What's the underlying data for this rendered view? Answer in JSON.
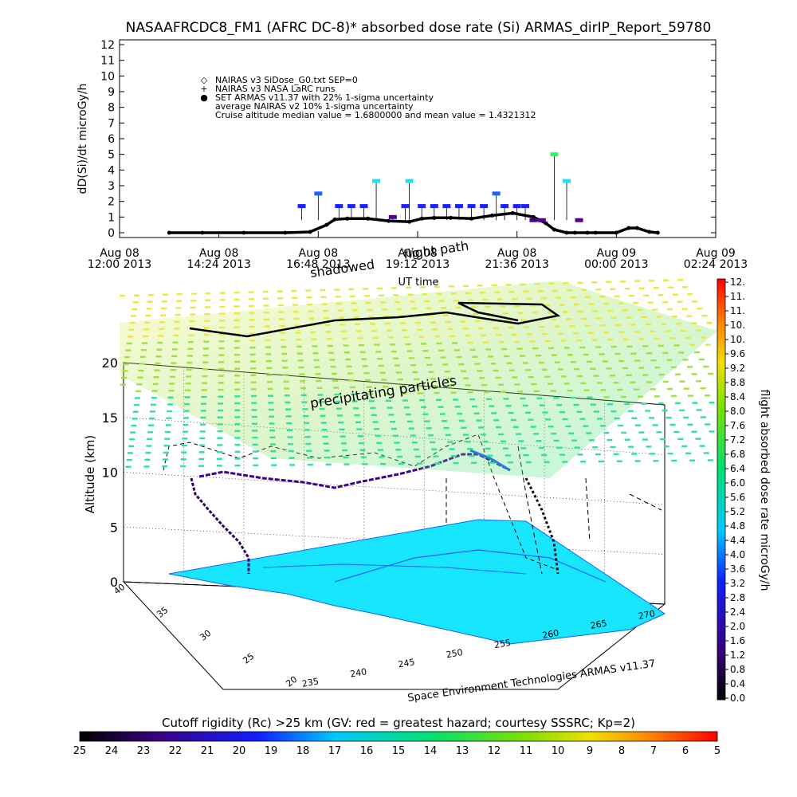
{
  "title": "NASAAFRCDC8_FM1 (AFRC DC-8)* absorbed dose rate (Si) ARMAS_dirIP_Report_59780",
  "chart_data": [
    {
      "type": "line",
      "ylabel": "dD(Si)/dt microGy/h",
      "xlabel": "UT time",
      "ylim": [
        0,
        12
      ],
      "yticks": [
        "0",
        "1",
        "2",
        "3",
        "4",
        "5",
        "6",
        "7",
        "8",
        "9",
        "10",
        "11",
        "12"
      ],
      "xtick_labels": [
        {
          "day": "Aug 08",
          "time": "12:00 2013"
        },
        {
          "day": "Aug 08",
          "time": "14:24 2013"
        },
        {
          "day": "Aug 08",
          "time": "16:48 2013"
        },
        {
          "day": "Aug 08",
          "time": "19:12 2013"
        },
        {
          "day": "Aug 08",
          "time": "21:36 2013"
        },
        {
          "day": "Aug 09",
          "time": "00:00 2013"
        },
        {
          "day": "Aug 09",
          "time": "02:24 2013"
        }
      ],
      "xlim_hours": [
        12,
        26.4
      ],
      "legend": [
        {
          "symbol": "◇",
          "text": "NAIRAS v3 SiDose_G0.txt SEP=0"
        },
        {
          "symbol": "+",
          "text": "NAIRAS v3 NASA LaRC runs"
        },
        {
          "symbol": "●",
          "text": "SET ARMAS v11.37 with 22% 1-sigma uncertainty"
        },
        {
          "symbol": "",
          "text": "average NAIRAS v2 10% 1-sigma uncertainty"
        },
        {
          "symbol": "",
          "text": "Cruise altitude median value = 1.6800000 and mean value = 1.4321312"
        }
      ],
      "annotations": [
        "shadowed",
        "flight path"
      ],
      "series": [
        {
          "name": "NAIRAS v3 SiDose_G0.txt SEP=0",
          "x": [
            13.2,
            14.0,
            15.0,
            16.0,
            16.6,
            17.0,
            17.2,
            17.5,
            18.0,
            18.5,
            19.0,
            19.3,
            19.6,
            20.0,
            20.5,
            21.0,
            21.5,
            22.0,
            22.3,
            22.5,
            22.8,
            23.0,
            23.3,
            23.5,
            24.0,
            24.3,
            24.5,
            24.8,
            25.0
          ],
          "y": [
            0,
            0,
            0,
            0,
            0.05,
            0.5,
            0.85,
            0.9,
            0.9,
            0.75,
            0.7,
            0.9,
            0.95,
            0.95,
            0.9,
            1.1,
            1.25,
            1.0,
            0.6,
            0.2,
            0,
            0,
            0,
            0,
            0,
            0.3,
            0.3,
            0.05,
            0
          ]
        },
        {
          "name": "SET ARMAS v11.37 with 22% 1-sigma uncertainty",
          "x": [
            16.4,
            16.8,
            17.3,
            17.6,
            17.9,
            18.2,
            18.6,
            18.9,
            19.0,
            19.3,
            19.6,
            19.9,
            20.2,
            20.5,
            20.8,
            21.1,
            21.3,
            21.6,
            21.8,
            22.0,
            22.2,
            22.5,
            22.8,
            23.1
          ],
          "y": [
            1.7,
            2.5,
            1.7,
            1.7,
            1.7,
            3.3,
            1.0,
            1.7,
            3.3,
            1.7,
            1.7,
            1.7,
            1.7,
            1.7,
            1.7,
            2.5,
            1.7,
            1.7,
            1.7,
            0.8,
            0.8,
            5.0,
            3.3,
            0.8
          ]
        }
      ]
    },
    {
      "type": "scatter",
      "zlabel": "Altitude (km)",
      "zticks": [
        "0",
        "5",
        "10",
        "15",
        "20"
      ],
      "lat_ticks": [
        "20",
        "25",
        "30",
        "35",
        "40"
      ],
      "lon_ticks": [
        "235",
        "240",
        "245",
        "250",
        "255",
        "260",
        "265",
        "270"
      ],
      "annotations": [
        "precipitating particles"
      ],
      "credit": "Space Environment Technologies ARMAS v11.37",
      "colorbar": {
        "label": "flight absorbed dose rate microGy/h",
        "ticks": [
          "12.",
          "11.",
          "11.",
          "10.",
          "10.",
          "9.6",
          "9.2",
          "8.8",
          "8.4",
          "8.0",
          "7.6",
          "7.2",
          "6.8",
          "6.4",
          "6.0",
          "5.6",
          "5.2",
          "4.8",
          "4.4",
          "4.0",
          "3.6",
          "3.2",
          "2.8",
          "2.4",
          "2.0",
          "1.6",
          "1.2",
          "0.8",
          "0.4",
          "0.0"
        ]
      },
      "rigidity_bar": {
        "label": "Cutoff rigidity (Rc) >25 km (GV: red = greatest hazard; courtesy SSSRC; Kp=2)",
        "ticks": [
          "25",
          "24",
          "23",
          "22",
          "21",
          "20",
          "19",
          "18",
          "17",
          "16",
          "15",
          "14",
          "13",
          "12",
          "11",
          "10",
          "9",
          "8",
          "7",
          "6",
          "5"
        ]
      }
    }
  ]
}
